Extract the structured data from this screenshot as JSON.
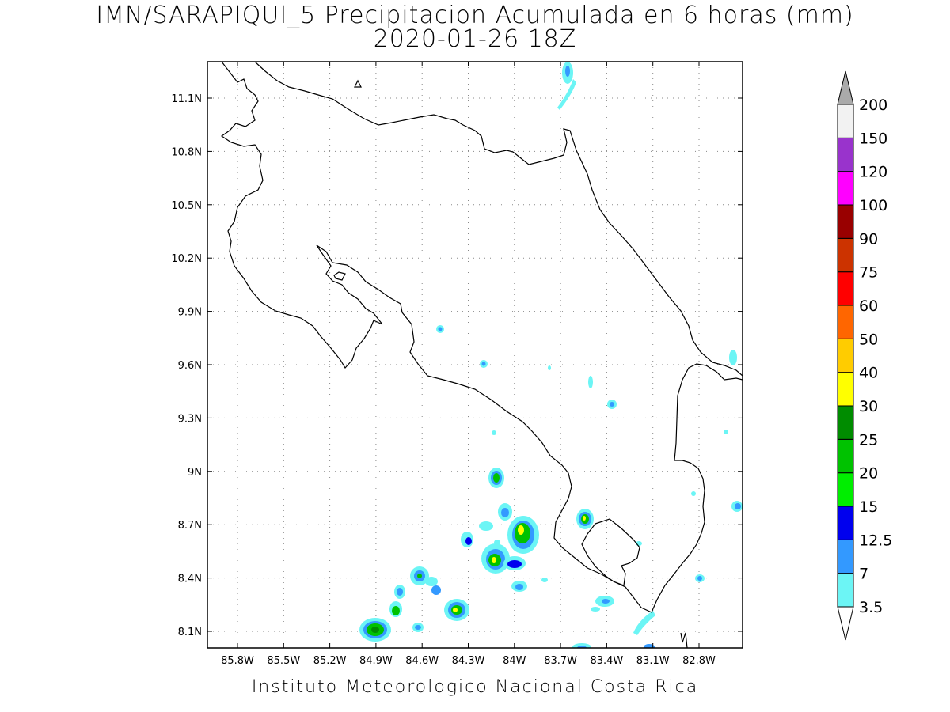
{
  "title": {
    "line1": "IMN/SARAPIQUI_5 Precipitacion Acumulada en 6 horas (mm)",
    "line2": "2020-01-26 18Z"
  },
  "footer": "Instituto Meteorologico Nacional Costa Rica",
  "map": {
    "lon_ticks": [
      "85.8W",
      "85.5W",
      "85.2W",
      "84.9W",
      "84.6W",
      "84.3W",
      "84W",
      "83.7W",
      "83.4W",
      "83.1W",
      "82.8W"
    ],
    "lat_ticks": [
      "11.1N",
      "10.8N",
      "10.5N",
      "10.2N",
      "9.9N",
      "9.6N",
      "9.3N",
      "9N",
      "8.7N",
      "8.4N",
      "8.1N"
    ],
    "grid": true,
    "coastline_color": "#000000"
  },
  "colorbar": {
    "labels": [
      "200",
      "150",
      "120",
      "100",
      "90",
      "75",
      "60",
      "50",
      "40",
      "30",
      "25",
      "20",
      "15",
      "12.5",
      "7",
      "3.5"
    ],
    "colors": [
      "#ffffff",
      "#6cf5f5",
      "#3399ff",
      "#0000ee",
      "#00ee00",
      "#00c200",
      "#008c00",
      "#ffff00",
      "#ffcc00",
      "#ff6600",
      "#ff0000",
      "#cc3300",
      "#990000",
      "#ff00ff",
      "#9933cc",
      "#f2f2f2",
      "#aaaaaa"
    ]
  }
}
